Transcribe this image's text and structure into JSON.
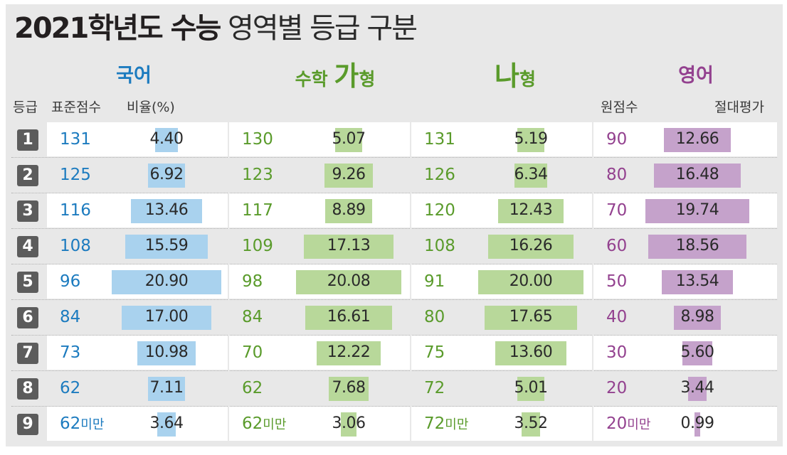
{
  "title": {
    "bold": "2021학년도 수능",
    "light": "영역별 등급 구분"
  },
  "colors": {
    "korean": "#1c7bbf",
    "math": "#5a9b2b",
    "english": "#93418f",
    "korean_bar": "#a9d2ee",
    "math_bar": "#b8d89a",
    "english_bar": "#c5a2cb",
    "grade_box": "#5c5c5c"
  },
  "headers": {
    "korean": "국어",
    "math_ga_prefix": "수학 ",
    "math_ga_big": "가",
    "math_ga_suffix": "형",
    "math_na_big": "나",
    "math_na_suffix": "형",
    "english": "영어"
  },
  "subheaders": {
    "grade": "등급",
    "std_score": "표준점수",
    "ratio": "비율(%)",
    "raw_score": "원점수",
    "absolute": "절대평가"
  },
  "chart_data": {
    "type": "table",
    "title": "2021학년도 수능 영역별 등급 구분",
    "grades": [
      "1",
      "2",
      "3",
      "4",
      "5",
      "6",
      "7",
      "8",
      "9"
    ],
    "series": [
      {
        "name": "국어",
        "score_label": "표준점수",
        "cutoffs": [
          "131",
          "125",
          "116",
          "108",
          "96",
          "84",
          "73",
          "62",
          "62미만"
        ],
        "ratios": [
          4.4,
          6.92,
          13.46,
          15.59,
          20.9,
          17.0,
          10.98,
          7.11,
          3.64
        ],
        "ratio_labels": [
          "4.40",
          "6.92",
          "13.46",
          "15.59",
          "20.90",
          "17.00",
          "10.98",
          "7.11",
          "3.64"
        ]
      },
      {
        "name": "수학 가형",
        "cutoffs": [
          "130",
          "123",
          "117",
          "109",
          "98",
          "84",
          "70",
          "62",
          "62미만"
        ],
        "ratios": [
          5.07,
          9.26,
          8.89,
          17.13,
          20.08,
          16.61,
          12.22,
          7.68,
          3.06
        ],
        "ratio_labels": [
          "5.07",
          "9.26",
          "8.89",
          "17.13",
          "20.08",
          "16.61",
          "12.22",
          "7.68",
          "3.06"
        ]
      },
      {
        "name": "나형",
        "cutoffs": [
          "131",
          "126",
          "120",
          "108",
          "91",
          "80",
          "75",
          "72",
          "72미만"
        ],
        "ratios": [
          5.19,
          6.34,
          12.43,
          16.26,
          20.0,
          17.65,
          13.6,
          5.01,
          3.52
        ],
        "ratio_labels": [
          "5.19",
          "6.34",
          "12.43",
          "16.26",
          "20.00",
          "17.65",
          "13.60",
          "5.01",
          "3.52"
        ]
      },
      {
        "name": "영어",
        "score_label": "원점수",
        "ratio_label": "절대평가",
        "cutoffs": [
          "90",
          "80",
          "70",
          "60",
          "50",
          "40",
          "30",
          "20",
          "20미만"
        ],
        "ratios": [
          12.66,
          16.48,
          19.74,
          18.56,
          13.54,
          8.98,
          5.6,
          3.44,
          0.99
        ],
        "ratio_labels": [
          "12.66",
          "16.48",
          "19.74",
          "18.56",
          "13.54",
          "8.98",
          "5.60",
          "3.44",
          "0.99"
        ]
      }
    ]
  }
}
